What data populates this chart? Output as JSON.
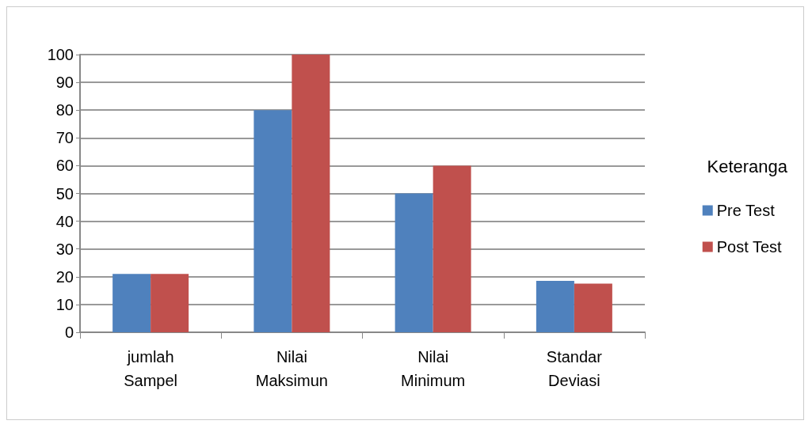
{
  "chart_data": {
    "type": "bar",
    "categories": [
      "jumlah\nSampel",
      "Nilai\nMaksimun",
      "Nilai\nMinimum",
      "Standar\nDeviasi"
    ],
    "series": [
      {
        "name": "Pre Test",
        "color": "#4f81bd",
        "values": [
          21,
          80,
          50,
          18.5
        ]
      },
      {
        "name": "Post Test",
        "color": "#c0504d",
        "values": [
          21,
          100,
          60,
          17.5
        ]
      }
    ],
    "legend_title": "Keteranga",
    "legend": "right",
    "ylim": [
      0,
      100
    ],
    "yticks": [
      0,
      10,
      20,
      30,
      40,
      50,
      60,
      70,
      80,
      90,
      100
    ],
    "grid": "y"
  }
}
